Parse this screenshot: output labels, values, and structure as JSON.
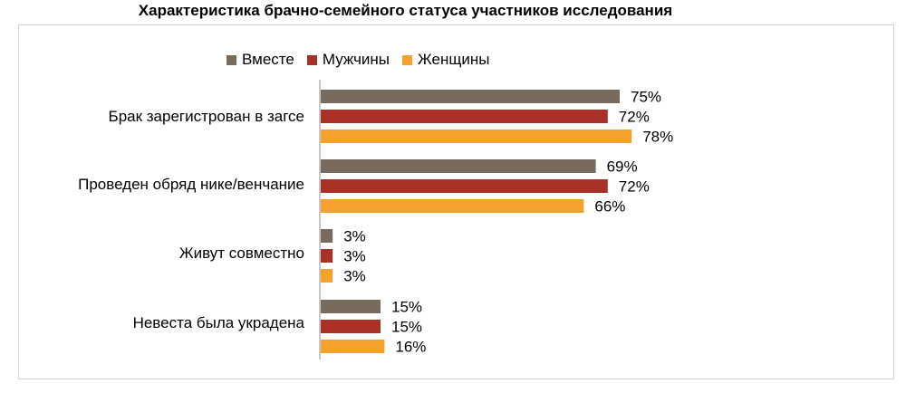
{
  "title": "Характеристика брачно-семейного  статуса участников исследования",
  "colors": {
    "together": "#786b5e",
    "men": "#a93226",
    "women": "#f5a22d"
  },
  "chart_data": {
    "type": "bar",
    "orientation": "horizontal",
    "title": "Характеристика брачно-семейного  статуса участников исследования",
    "categories": [
      "Брак зарегистрован в  загсе",
      "Проведен обряд нике/венчание",
      "Живут совместно",
      "Невеста была украдена"
    ],
    "series": [
      {
        "name": "Вместе",
        "values": [
          75,
          69,
          3,
          15
        ],
        "labels": [
          "75%",
          "69%",
          "3%",
          "15%"
        ]
      },
      {
        "name": "Мужчины",
        "values": [
          72,
          72,
          3,
          15
        ],
        "labels": [
          "72%",
          "72%",
          "3%",
          "15%"
        ]
      },
      {
        "name": "Женщины",
        "values": [
          78,
          66,
          3,
          16
        ],
        "labels": [
          "78%",
          "66%",
          "3%",
          "16%"
        ]
      }
    ],
    "unit": "%",
    "legend_position": "top",
    "grid": false
  }
}
